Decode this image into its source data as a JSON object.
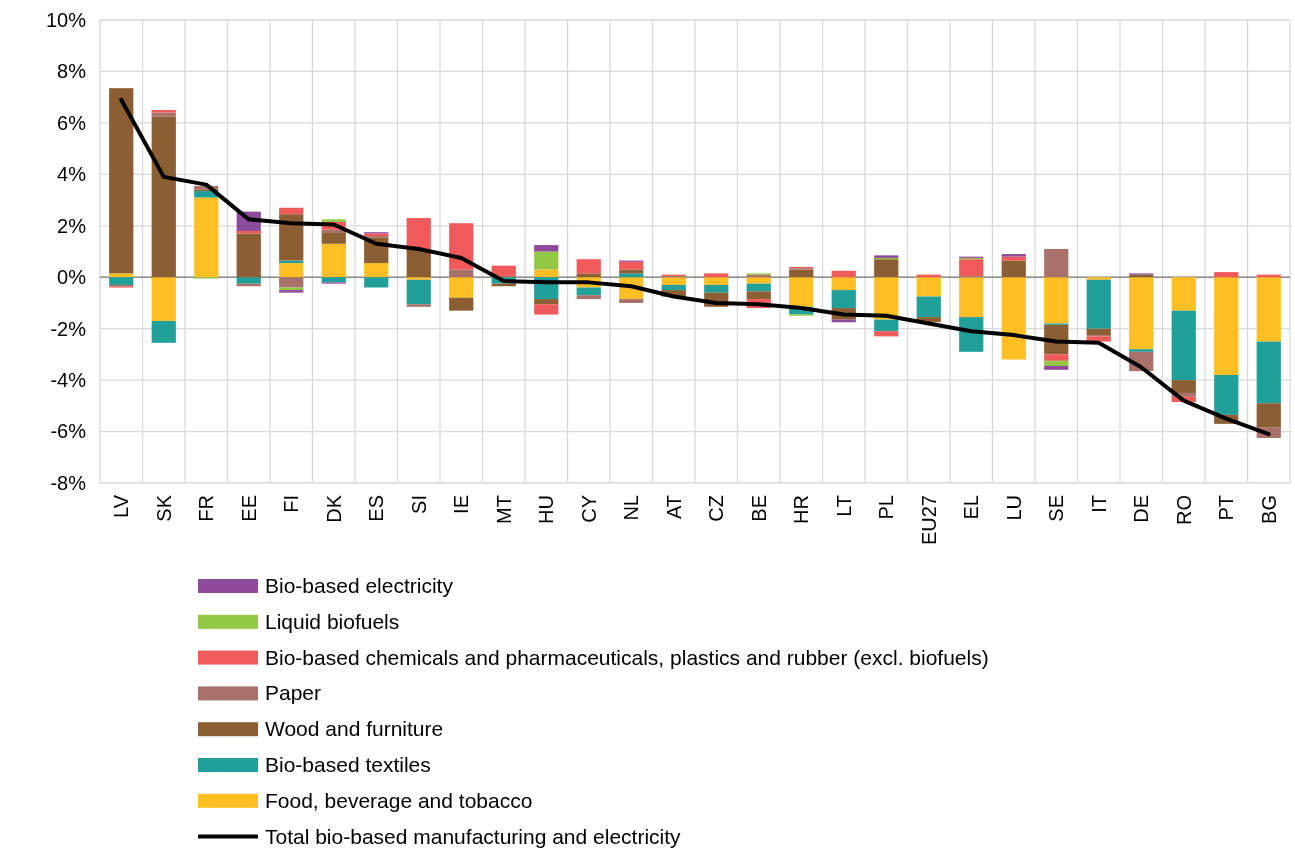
{
  "chart_data": {
    "type": "bar",
    "stacked": true,
    "grid": true,
    "legend": "bottom",
    "categories": [
      "LV",
      "SK",
      "FR",
      "EE",
      "FI",
      "DK",
      "ES",
      "SI",
      "IE",
      "MT",
      "HU",
      "CY",
      "NL",
      "AT",
      "CZ",
      "BE",
      "HR",
      "LT",
      "PL",
      "EU27",
      "EL",
      "LU",
      "SE",
      "IT",
      "DE",
      "RO",
      "PT",
      "BG"
    ],
    "ylim": [
      -8,
      10
    ],
    "yticks": [
      {
        "value": -8,
        "label": "-8%"
      },
      {
        "value": -6,
        "label": "-6%"
      },
      {
        "value": -4,
        "label": "-4%"
      },
      {
        "value": -2,
        "label": "-2%"
      },
      {
        "value": 0,
        "label": "0%"
      },
      {
        "value": 2,
        "label": "2%"
      },
      {
        "value": 4,
        "label": "4%"
      },
      {
        "value": 6,
        "label": "6%"
      },
      {
        "value": 8,
        "label": "8%"
      },
      {
        "value": 10,
        "label": "10%"
      }
    ],
    "series": [
      {
        "name": "Food, beverage and tobacco",
        "color": "#fdbf24",
        "values": [
          0.15,
          -1.7,
          3.1,
          0,
          0.55,
          1.3,
          0.55,
          -0.1,
          -0.8,
          null,
          0.3,
          -0.4,
          -0.85,
          -0.3,
          -0.3,
          -0.25,
          -1.15,
          -0.5,
          -1.65,
          -0.75,
          -1.55,
          -3.2,
          -1.8,
          -0.1,
          -2.8,
          -1.3,
          -3.8,
          -2.5
        ]
      },
      {
        "name": "Bio-based textiles",
        "color": "#21a09a",
        "values": [
          -0.3,
          -0.85,
          0.25,
          -0.25,
          0.1,
          -0.2,
          -0.4,
          -0.95,
          0,
          -0.25,
          -0.85,
          -0.3,
          0.15,
          -0.2,
          -0.3,
          -0.3,
          -0.3,
          -0.7,
          -0.45,
          -0.8,
          -1.35,
          0,
          -0.05,
          -1.9,
          -0.1,
          -2.7,
          -1.55,
          -2.4
        ]
      },
      {
        "name": "Wood and furniture",
        "color": "#8b5e34",
        "values": [
          7.2,
          6.25,
          0.05,
          1.7,
          1.8,
          0.45,
          1.0,
          1.1,
          -0.5,
          -0.1,
          -0.2,
          0.15,
          0.15,
          -0.25,
          -0.55,
          -0.3,
          0.3,
          -0.45,
          0.7,
          -0.2,
          0,
          0.65,
          -1.15,
          -0.25,
          0.1,
          -0.5,
          -0.35,
          -0.95
        ]
      },
      {
        "name": "Paper",
        "color": "#a8716a",
        "values": [
          -0.05,
          0.15,
          0.15,
          -0.1,
          -0.4,
          0.1,
          0.05,
          -0.1,
          0.3,
          0.05,
          0,
          -0.15,
          -0.15,
          0.05,
          0,
          0.1,
          0.05,
          0,
          0,
          null,
          0.05,
          0,
          1.1,
          -0.05,
          -0.75,
          -0.15,
          0,
          -0.4
        ]
      },
      {
        "name": "Bio-based chemicals and pharmaceuticals, plastics and rubber (excl. biofuels)",
        "color": "#f05a5a",
        "values": [
          -0.05,
          0.1,
          null,
          0.1,
          0.25,
          0.3,
          0.1,
          1.2,
          1.8,
          0.4,
          -0.4,
          0.55,
          0.3,
          0.05,
          0.15,
          -0.35,
          0.05,
          0.25,
          -0.2,
          0.1,
          0.65,
          0.15,
          -0.25,
          -0.2,
          0,
          -0.2,
          0.2,
          0.1
        ]
      },
      {
        "name": "Liquid biofuels",
        "color": "#92c843",
        "values": [
          0,
          0,
          -0.05,
          0,
          -0.1,
          0.1,
          0,
          0,
          0,
          0,
          0.7,
          0,
          0,
          0,
          0,
          0.05,
          -0.05,
          0,
          0.05,
          null,
          0.05,
          0,
          -0.2,
          0,
          0,
          0,
          0,
          0
        ]
      },
      {
        "name": "Bio-based electricity",
        "color": "#8e4b9b",
        "values": [
          0,
          0,
          0,
          0.75,
          -0.1,
          -0.05,
          0.05,
          0,
          0,
          0,
          0.25,
          0,
          0.05,
          0,
          0,
          0,
          0,
          -0.1,
          0.1,
          0,
          0.05,
          0.1,
          -0.15,
          0,
          0.05,
          0,
          0,
          0
        ]
      },
      {
        "name": "Total bio-based manufacturing and electricity",
        "type": "line",
        "color": "#000000",
        "values": [
          6.9,
          3.9,
          3.6,
          2.25,
          2.1,
          2.05,
          1.3,
          1.1,
          0.75,
          -0.15,
          -0.2,
          -0.2,
          -0.35,
          -0.75,
          -1.0,
          -1.05,
          -1.2,
          -1.45,
          -1.5,
          -1.8,
          -2.1,
          -2.25,
          -2.5,
          -2.55,
          -3.5,
          -4.8,
          -5.5,
          -6.1
        ]
      }
    ]
  }
}
